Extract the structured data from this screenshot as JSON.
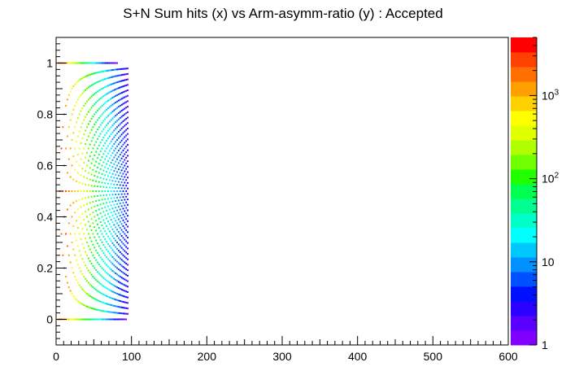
{
  "chart_data": {
    "type": "heatmap",
    "title": "S+N Sum hits (x) vs Arm-asymm-ratio (y) : Accepted",
    "xlabel": "",
    "ylabel": "",
    "xlim": [
      0,
      600
    ],
    "ylim": [
      -0.1,
      1.1
    ],
    "x_ticks": [
      "0",
      "100",
      "200",
      "300",
      "400",
      "500",
      "600"
    ],
    "x_tick_values": [
      0,
      100,
      200,
      300,
      400,
      500,
      600
    ],
    "y_ticks": [
      "0",
      "0.2",
      "0.4",
      "0.6",
      "0.8",
      "1"
    ],
    "y_tick_values": [
      0,
      0.2,
      0.4,
      0.6,
      0.8,
      1.0
    ],
    "grid": false,
    "z_scale": "log",
    "z_range": [
      1,
      5000
    ],
    "z_ticks": [
      {
        "base": "1",
        "exp": "",
        "value": 1
      },
      {
        "base": "10",
        "exp": "",
        "value": 10
      },
      {
        "base": "10",
        "exp": "2",
        "value": 100
      },
      {
        "base": "10",
        "exp": "3",
        "value": 1000
      }
    ],
    "palette": [
      "#7f00ff",
      "#5a00ff",
      "#2a00ff",
      "#0010ff",
      "#0050ff",
      "#0090ff",
      "#00c8ff",
      "#00ffff",
      "#00ffc8",
      "#00ff90",
      "#00ff50",
      "#20ff00",
      "#70ff00",
      "#b0ff00",
      "#e0ff00",
      "#ffff00",
      "#ffd000",
      "#ffa000",
      "#ff7000",
      "#ff4000",
      "#ff0000"
    ],
    "description_of_data": "Banded arcs: for N total hits, asymmetry takes discrete values; counts highest at low N, diminishing toward N~90."
  }
}
